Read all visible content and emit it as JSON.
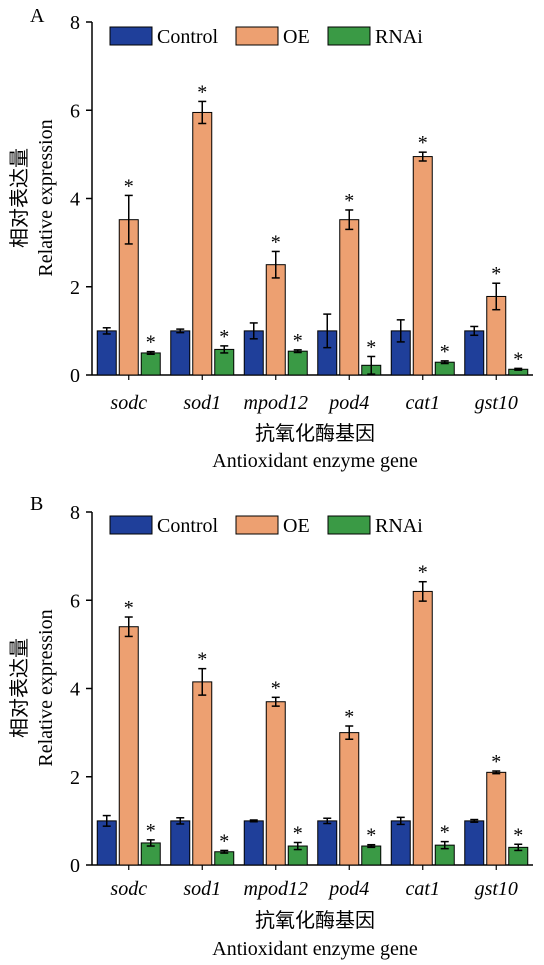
{
  "panels": [
    {
      "panel_label": "A",
      "ylabel_cn": "相对表达量",
      "ylabel_en": "Relative expression",
      "xlabel_cn": "抗氧化酶基因",
      "xlabel_en": "Antioxidant enzyme gene"
    },
    {
      "panel_label": "B",
      "ylabel_cn": "相对表达量",
      "ylabel_en": "Relative expression",
      "xlabel_cn": "抗氧化酶基因",
      "xlabel_en": "Antioxidant enzyme gene"
    }
  ],
  "colors": {
    "Control": "#1f3f9a",
    "OE": "#eda071",
    "RNAi": "#3a9a45"
  },
  "chart_data": [
    {
      "type": "bar",
      "panel": "A",
      "categories": [
        "sodc",
        "sod1",
        "mpod12",
        "pod4",
        "cat1",
        "gst10"
      ],
      "xlabel": "抗氧化酶基因 Antioxidant enzyme gene",
      "ylabel": "相对表达量 Relative expression",
      "ylim": [
        0,
        8
      ],
      "yticks": [
        0,
        2,
        4,
        6,
        8
      ],
      "legend": "top",
      "series": [
        {
          "name": "Control",
          "values": [
            1.0,
            1.0,
            1.0,
            1.0,
            1.0,
            1.0
          ],
          "errors": [
            0.07,
            0.04,
            0.18,
            0.38,
            0.25,
            0.1
          ]
        },
        {
          "name": "OE",
          "values": [
            3.52,
            5.95,
            2.5,
            3.52,
            4.95,
            1.78
          ],
          "errors": [
            0.55,
            0.25,
            0.3,
            0.22,
            0.1,
            0.3
          ]
        },
        {
          "name": "RNAi",
          "values": [
            0.5,
            0.58,
            0.54,
            0.22,
            0.29,
            0.13
          ],
          "errors": [
            0.03,
            0.08,
            0.03,
            0.2,
            0.03,
            0.02
          ]
        }
      ],
      "significance": [
        {
          "series": "OE",
          "marks": [
            "*",
            "*",
            "*",
            "*",
            "*",
            "*"
          ]
        },
        {
          "series": "RNAi",
          "marks": [
            "*",
            "*",
            "*",
            "*",
            "*",
            "*"
          ]
        }
      ]
    },
    {
      "type": "bar",
      "panel": "B",
      "categories": [
        "sodc",
        "sod1",
        "mpod12",
        "pod4",
        "cat1",
        "gst10"
      ],
      "xlabel": "抗氧化酶基因 Antioxidant enzyme gene",
      "ylabel": "相对表达量 Relative expression",
      "ylim": [
        0,
        8
      ],
      "yticks": [
        0,
        2,
        4,
        6,
        8
      ],
      "legend": "top",
      "series": [
        {
          "name": "Control",
          "values": [
            1.0,
            1.0,
            1.0,
            1.0,
            1.0,
            1.0
          ],
          "errors": [
            0.12,
            0.07,
            0.02,
            0.06,
            0.08,
            0.03
          ]
        },
        {
          "name": "OE",
          "values": [
            5.4,
            4.15,
            3.7,
            3.0,
            6.2,
            2.1
          ],
          "errors": [
            0.22,
            0.3,
            0.1,
            0.15,
            0.22,
            0.03
          ]
        },
        {
          "name": "RNAi",
          "values": [
            0.5,
            0.3,
            0.43,
            0.43,
            0.45,
            0.4
          ],
          "errors": [
            0.07,
            0.03,
            0.08,
            0.03,
            0.08,
            0.07
          ]
        }
      ],
      "significance": [
        {
          "series": "OE",
          "marks": [
            "*",
            "*",
            "*",
            "*",
            "*",
            "*"
          ]
        },
        {
          "series": "RNAi",
          "marks": [
            "*",
            "*",
            "*",
            "*",
            "*",
            "*"
          ]
        }
      ]
    }
  ]
}
